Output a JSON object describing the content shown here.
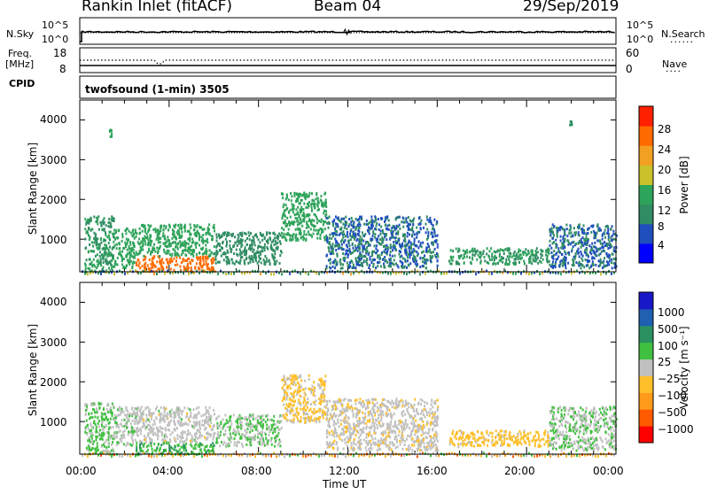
{
  "header": {
    "station": "Rankin Inlet (fitACF)",
    "beam": "Beam 04",
    "date": "29/Sep/2019"
  },
  "top_panels": {
    "nsky_label": "N.Sky",
    "nsky_ticks": [
      "10^5",
      "10^0"
    ],
    "nsearch_label": "N.Search",
    "nsearch_ticks": [
      "10^5",
      "10^0"
    ],
    "freq_label": "Freq.",
    "freq_unit": "[MHz]",
    "freq_ticks": [
      "18",
      "8"
    ],
    "nave_label": "Nave",
    "nave_ticks": [
      "60",
      "0"
    ],
    "cpid_label": "CPID",
    "cpid_value": "twofsound (1-min) 3505"
  },
  "axes": {
    "ylabel": "Slant Range [km]",
    "yticks": [
      "4000",
      "3000",
      "2000",
      "1000"
    ],
    "xticks": [
      "00:00",
      "04:00",
      "08:00",
      "12:00",
      "16:00",
      "20:00",
      "00:00"
    ],
    "xlabel": "Time UT"
  },
  "colorbars": {
    "power": {
      "label": "Power [dB]",
      "ticks": [
        "28",
        "24",
        "20",
        "16",
        "12",
        "8",
        "4"
      ],
      "colors": [
        "#0000ff",
        "#1f4fbd",
        "#2f8c63",
        "#2ea35a",
        "#c9c22a",
        "#f2a023",
        "#ff6a00",
        "#ff2000"
      ]
    },
    "velocity": {
      "label": "Velocity [m s⁻¹]",
      "ticks": [
        "1000",
        "500",
        "100",
        "25",
        "−25",
        "−100",
        "−500",
        "−1000"
      ],
      "colors": [
        "#ff0000",
        "#ff5a00",
        "#ff9a1a",
        "#ffbf2a",
        "#c0c0c0",
        "#40c040",
        "#2b9060",
        "#1f60b0",
        "#1818c8"
      ]
    }
  },
  "chart_data": [
    {
      "type": "heatmap",
      "title": "Power",
      "xlabel": "Time UT",
      "ylabel": "Slant Range [km]",
      "x_range_hours": [
        0,
        24
      ],
      "ylim": [
        180,
        4500
      ],
      "value_unit": "dB",
      "clim": [
        0,
        32
      ],
      "features": [
        {
          "t": [
            0.2,
            1.5
          ],
          "r": [
            180,
            1600
          ],
          "value": 12
        },
        {
          "t": [
            1.5,
            2.5
          ],
          "r": [
            300,
            1300
          ],
          "value": 14
        },
        {
          "t": [
            2.5,
            6.0
          ],
          "r": [
            200,
            600
          ],
          "value": 26
        },
        {
          "t": [
            2.5,
            6.0
          ],
          "r": [
            600,
            1400
          ],
          "value": 14
        },
        {
          "t": [
            6.0,
            9.0
          ],
          "r": [
            400,
            1200
          ],
          "value": 10
        },
        {
          "t": [
            9.0,
            11.0
          ],
          "r": [
            1000,
            2200
          ],
          "value": 14
        },
        {
          "t": [
            11.0,
            16.0
          ],
          "r": [
            300,
            1600
          ],
          "value": 8
        },
        {
          "t": [
            16.5,
            21.0
          ],
          "r": [
            400,
            800
          ],
          "value": 12
        },
        {
          "t": [
            21.0,
            24.0
          ],
          "r": [
            300,
            1400
          ],
          "value": 8
        },
        {
          "t": [
            1.3,
            1.4
          ],
          "r": [
            3600,
            3800
          ],
          "value": 14
        },
        {
          "t": [
            21.9,
            22.0
          ],
          "r": [
            3900,
            4000
          ],
          "value": 12
        }
      ]
    },
    {
      "type": "heatmap",
      "title": "Velocity",
      "xlabel": "Time UT",
      "ylabel": "Slant Range [km]",
      "x_range_hours": [
        0,
        24
      ],
      "ylim": [
        180,
        4500
      ],
      "value_unit": "m s-1",
      "clim": [
        -1000,
        1000
      ],
      "features": [
        {
          "t": [
            0.2,
            1.5
          ],
          "r": [
            200,
            1500
          ],
          "value": 150
        },
        {
          "t": [
            1.5,
            2.5
          ],
          "r": [
            400,
            1400
          ],
          "value": 50
        },
        {
          "t": [
            2.5,
            6.0
          ],
          "r": [
            500,
            1400
          ],
          "value": 0
        },
        {
          "t": [
            2.5,
            6.0
          ],
          "r": [
            200,
            500
          ],
          "value": 300
        },
        {
          "t": [
            6.0,
            9.0
          ],
          "r": [
            400,
            1200
          ],
          "value": 120
        },
        {
          "t": [
            9.0,
            11.0
          ],
          "r": [
            1000,
            2200
          ],
          "value": -150
        },
        {
          "t": [
            11.0,
            16.0
          ],
          "r": [
            300,
            1600
          ],
          "value": -50
        },
        {
          "t": [
            16.5,
            21.0
          ],
          "r": [
            400,
            800
          ],
          "value": -200
        },
        {
          "t": [
            21.0,
            24.0
          ],
          "r": [
            300,
            1400
          ],
          "value": 100
        }
      ]
    }
  ]
}
